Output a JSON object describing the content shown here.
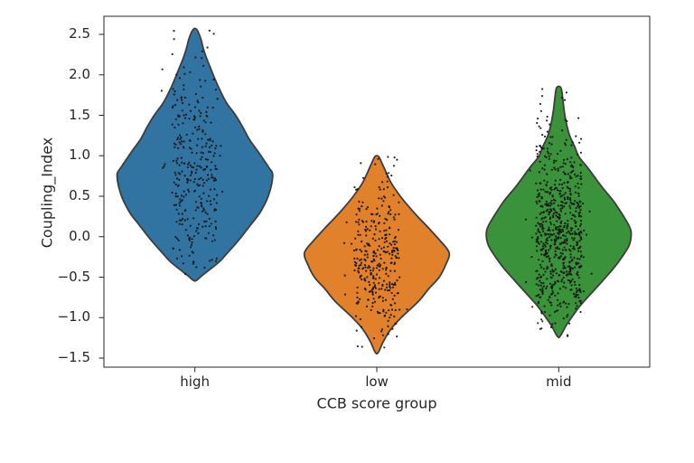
{
  "chart_data": {
    "type": "violin",
    "title": "",
    "xlabel": "CCB score group",
    "ylabel": "Coupling_Index",
    "categories": [
      "high",
      "low",
      "mid"
    ],
    "y_ticks": [
      {
        "value": 2.5,
        "label": "2.5"
      },
      {
        "value": 2.0,
        "label": "2.0"
      },
      {
        "value": 1.5,
        "label": "1.5"
      },
      {
        "value": 1.0,
        "label": "1.0"
      },
      {
        "value": 0.5,
        "label": "0.5"
      },
      {
        "value": 0.0,
        "label": "0.0"
      },
      {
        "value": -0.5,
        "label": "−0.5"
      },
      {
        "value": -1.0,
        "label": "−1.0"
      },
      {
        "value": -1.5,
        "label": "−1.5"
      }
    ],
    "ylim": [
      -1.61,
      2.72
    ],
    "grid": false,
    "legend": null,
    "overlay": "strip-points",
    "jitter_halfwidth": 0.125,
    "colors": {
      "high": "#3274a1",
      "low": "#e1812c",
      "mid": "#3a923a",
      "edge": "#3d3d3d",
      "points": "#121212",
      "axis": "#262626",
      "text": "#262626"
    },
    "series": [
      {
        "name": "high",
        "n_points": 320,
        "seed": 11,
        "value_range": [
          -0.55,
          2.5
        ],
        "mode": 0.75,
        "profile": [
          [
            2.56,
            0.01
          ],
          [
            2.45,
            0.032
          ],
          [
            2.33,
            0.046
          ],
          [
            2.2,
            0.065
          ],
          [
            2.05,
            0.092
          ],
          [
            1.95,
            0.11
          ],
          [
            1.8,
            0.14
          ],
          [
            1.65,
            0.175
          ],
          [
            1.5,
            0.224
          ],
          [
            1.35,
            0.264
          ],
          [
            1.2,
            0.3
          ],
          [
            1.05,
            0.348
          ],
          [
            0.95,
            0.378
          ],
          [
            0.85,
            0.408
          ],
          [
            0.78,
            0.427
          ],
          [
            0.65,
            0.422
          ],
          [
            0.5,
            0.403
          ],
          [
            0.4,
            0.383
          ],
          [
            0.28,
            0.353
          ],
          [
            0.15,
            0.308
          ],
          [
            0.0,
            0.256
          ],
          [
            -0.1,
            0.219
          ],
          [
            -0.2,
            0.179
          ],
          [
            -0.3,
            0.139
          ],
          [
            -0.4,
            0.085
          ],
          [
            -0.48,
            0.04
          ],
          [
            -0.54,
            0.008
          ]
        ]
      },
      {
        "name": "low",
        "n_points": 340,
        "seed": 22,
        "value_range": [
          -1.45,
          0.95
        ],
        "mode": -0.2,
        "profile": [
          [
            0.99,
            0.01
          ],
          [
            0.9,
            0.03
          ],
          [
            0.8,
            0.05
          ],
          [
            0.66,
            0.08
          ],
          [
            0.5,
            0.129
          ],
          [
            0.39,
            0.169
          ],
          [
            0.25,
            0.224
          ],
          [
            0.1,
            0.288
          ],
          [
            -0.05,
            0.348
          ],
          [
            -0.2,
            0.398
          ],
          [
            -0.35,
            0.378
          ],
          [
            -0.5,
            0.343
          ],
          [
            -0.65,
            0.283
          ],
          [
            -0.8,
            0.229
          ],
          [
            -1.0,
            0.134
          ],
          [
            -1.15,
            0.075
          ],
          [
            -1.3,
            0.035
          ],
          [
            -1.43,
            0.008
          ]
        ]
      },
      {
        "name": "mid",
        "n_points": 700,
        "seed": 33,
        "value_range": [
          -1.35,
          1.8
        ],
        "mode": 0.05,
        "profile": [
          [
            1.84,
            0.012
          ],
          [
            1.7,
            0.022
          ],
          [
            1.55,
            0.03
          ],
          [
            1.4,
            0.042
          ],
          [
            1.25,
            0.06
          ],
          [
            1.1,
            0.09
          ],
          [
            0.99,
            0.11
          ],
          [
            0.85,
            0.16
          ],
          [
            0.7,
            0.209
          ],
          [
            0.61,
            0.239
          ],
          [
            0.45,
            0.298
          ],
          [
            0.3,
            0.343
          ],
          [
            0.15,
            0.383
          ],
          [
            0.05,
            0.398
          ],
          [
            -0.1,
            0.388
          ],
          [
            -0.25,
            0.348
          ],
          [
            -0.4,
            0.298
          ],
          [
            -0.55,
            0.239
          ],
          [
            -0.7,
            0.179
          ],
          [
            -0.85,
            0.119
          ],
          [
            -1.0,
            0.07
          ],
          [
            -1.1,
            0.04
          ],
          [
            -1.23,
            0.008
          ]
        ]
      }
    ]
  }
}
